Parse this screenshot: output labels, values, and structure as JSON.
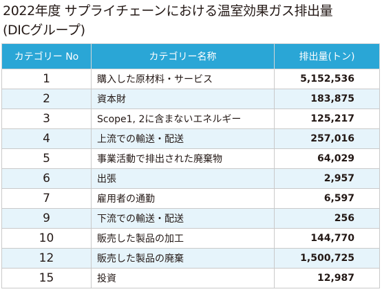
{
  "title": {
    "line1": "2022年度 サプライチェーンにおける温室効果ガス排出量",
    "line2": "(DICグループ)"
  },
  "table": {
    "headers": [
      "カテゴリー No",
      "カテゴリー名称",
      "排出量(トン)"
    ],
    "rows": [
      {
        "no": "1",
        "name": "購入した原材料・サービス",
        "value": "5,152,536"
      },
      {
        "no": "2",
        "name": "資本財",
        "value": "183,875"
      },
      {
        "no": "3",
        "name": "Scope1, 2に含まないエネルギー",
        "value": "125,217"
      },
      {
        "no": "4",
        "name": "上流での輸送・配送",
        "value": "257,016"
      },
      {
        "no": "5",
        "name": "事業活動で排出された廃棄物",
        "value": "64,029"
      },
      {
        "no": "6",
        "name": "出張",
        "value": "2,957"
      },
      {
        "no": "7",
        "name": "雇用者の通勤",
        "value": "6,597"
      },
      {
        "no": "9",
        "name": "下流での輸送・配送",
        "value": "256"
      },
      {
        "no": "10",
        "name": "販売した製品の加工",
        "value": "144,770"
      },
      {
        "no": "12",
        "name": "販売した製品の廃棄",
        "value": "1,500,725"
      },
      {
        "no": "15",
        "name": "投資",
        "value": "12,987"
      }
    ]
  },
  "colors": {
    "header_bg": "#2aa6d6",
    "row_alt_bg": "#e6f4fb",
    "text": "#231815"
  }
}
